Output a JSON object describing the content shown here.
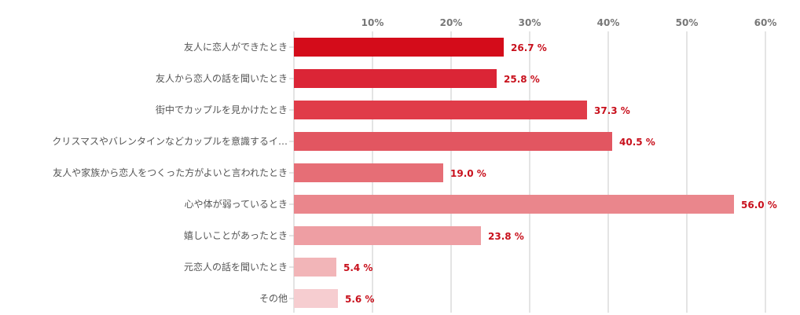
{
  "chart_data": {
    "type": "bar",
    "orientation": "horizontal",
    "title": "",
    "xlabel": "",
    "ylabel": "",
    "xlim": [
      0,
      60
    ],
    "tick_values": [
      10,
      20,
      30,
      40,
      50,
      60
    ],
    "tick_labels": [
      "10%",
      "20%",
      "30%",
      "40%",
      "50%",
      "60%"
    ],
    "grid": true,
    "categories": [
      "友人に恋人ができたとき",
      "友人から恋人の話を聞いたとき",
      "街中でカップルを見かけたとき",
      "クリスマスやバレンタインなどカップルを意識するイ…",
      "友人や家族から恋人をつくった方がよいと言われたとき",
      "心や体が弱っているとき",
      "嬉しいことがあったとき",
      "元恋人の話を聞いたとき",
      "その他"
    ],
    "values": [
      26.7,
      25.8,
      37.3,
      40.5,
      19.0,
      56.0,
      23.8,
      5.4,
      5.6
    ],
    "value_labels": [
      "26.7 %",
      "25.8 %",
      "37.3 %",
      "40.5 %",
      "19.0 %",
      "56.0 %",
      "23.8 %",
      "5.4 %",
      "5.6 %"
    ],
    "colors": [
      "#d40c1a",
      "#db2536",
      "#e03c49",
      "#e25661",
      "#e66e76",
      "#ea868c",
      "#ee9ea3",
      "#f2b5b8",
      "#f6cdd0"
    ],
    "label_color": "#c8101c",
    "grid_color": "#c8c8c8"
  }
}
